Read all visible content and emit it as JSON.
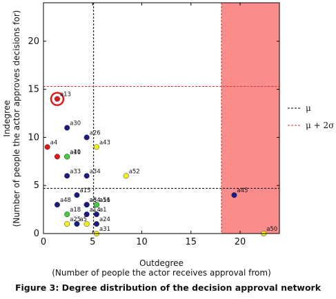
{
  "caption": "Figure 3: Degree distribution of the decision approval network",
  "chart_data": {
    "type": "scatter",
    "xlabel": "Outdegree",
    "xlabel_sub": "(Number of people the actor receives approval from)",
    "ylabel": "Indegree",
    "ylabel_sub": "(Number of people the actor approves decisions for)",
    "xlim": [
      0,
      24
    ],
    "ylim": [
      0,
      24
    ],
    "xticks": [
      0,
      5,
      10,
      15,
      20
    ],
    "yticks": [
      0,
      5,
      10,
      15,
      20
    ],
    "colors": {
      "navy": "#1a1a80",
      "yellow": "#f2ef20",
      "green": "#3fcf3f",
      "red": "#e01818",
      "shade": "#fa8c8c"
    },
    "mean_lines": {
      "x": 5.1,
      "y": 4.7,
      "label": "μ"
    },
    "sigma_lines": {
      "x": 18.1,
      "y": 15.3,
      "label": "μ + 2σ"
    },
    "shaded_region": {
      "x_from": 18.1,
      "x_to": 24
    },
    "highlight": "a13",
    "points": [
      {
        "label": "a13",
        "x": 1.4,
        "y": 14,
        "color": "red"
      },
      {
        "label": "a30",
        "x": 2.4,
        "y": 11,
        "color": "navy"
      },
      {
        "label": "a26",
        "x": 4.4,
        "y": 10,
        "color": "navy"
      },
      {
        "label": "a43",
        "x": 5.4,
        "y": 9,
        "color": "yellow"
      },
      {
        "label": "a4",
        "x": 0.4,
        "y": 9,
        "color": "red"
      },
      {
        "label": "",
        "x": 1.4,
        "y": 8,
        "color": "red"
      },
      {
        "label": "a41",
        "x": 2.4,
        "y": 8,
        "color": "green"
      },
      {
        "label": "a10",
        "x": 2.4,
        "y": 8,
        "color": "green"
      },
      {
        "label": "a33",
        "x": 2.4,
        "y": 6,
        "color": "navy"
      },
      {
        "label": "a34",
        "x": 4.4,
        "y": 6,
        "color": "navy"
      },
      {
        "label": "a52",
        "x": 8.4,
        "y": 6,
        "color": "yellow"
      },
      {
        "label": "a15",
        "x": 3.4,
        "y": 4,
        "color": "navy"
      },
      {
        "label": "a45",
        "x": 19.4,
        "y": 4,
        "color": "navy"
      },
      {
        "label": "a48",
        "x": 1.4,
        "y": 3,
        "color": "navy"
      },
      {
        "label": "a54",
        "x": 4.4,
        "y": 3,
        "color": "navy"
      },
      {
        "label": "a8",
        "x": 4.4,
        "y": 3,
        "color": "navy"
      },
      {
        "label": "a51",
        "x": 5.4,
        "y": 3,
        "color": "navy"
      },
      {
        "label": "a16",
        "x": 5.4,
        "y": 3,
        "color": "green"
      },
      {
        "label": "a18",
        "x": 2.4,
        "y": 2,
        "color": "green"
      },
      {
        "label": "a14",
        "x": 4.4,
        "y": 2,
        "color": "navy"
      },
      {
        "label": "a1",
        "x": 5.4,
        "y": 2,
        "color": "navy"
      },
      {
        "label": "a24",
        "x": 5.4,
        "y": 1,
        "color": "navy"
      },
      {
        "label": "a25",
        "x": 2.4,
        "y": 1,
        "color": "yellow"
      },
      {
        "label": "a5",
        "x": 3.4,
        "y": 1,
        "color": "navy"
      },
      {
        "label": "",
        "x": 4.4,
        "y": 1,
        "color": "yellow"
      },
      {
        "label": "a31",
        "x": 5.4,
        "y": 0,
        "color": "yellow"
      },
      {
        "label": "a50",
        "x": 22.4,
        "y": 0,
        "color": "yellow"
      }
    ]
  }
}
